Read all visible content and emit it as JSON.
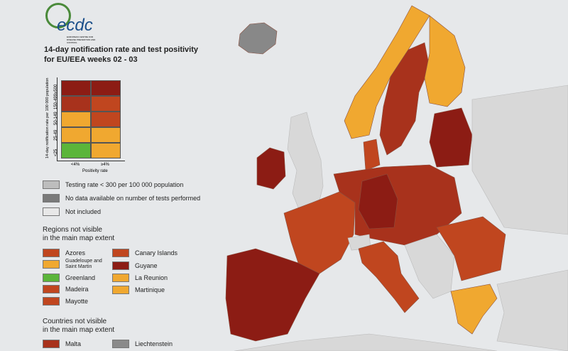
{
  "logo": {
    "name": "ecdc",
    "subtitle": "EUROPEAN CENTRE FOR DISEASE PREVENTION AND CONTROL"
  },
  "title": [
    "14-day notification rate and test positivity",
    "for EU/EEA weeks 02 - 03"
  ],
  "matrix": {
    "y_label": "14-day notification rate per 100 000 population",
    "rows": [
      "≥500",
      "150-499",
      "50-149",
      "25-49",
      "<25"
    ],
    "columns": [
      "<4%",
      "≥4%"
    ],
    "x_label": "Positivity rate",
    "colors": [
      [
        "#8c1c14",
        "#8c1c14"
      ],
      [
        "#a8321c",
        "#c0461f"
      ],
      [
        "#f0a830",
        "#c0461f"
      ],
      [
        "#f0a830",
        "#f0a830"
      ],
      [
        "#5bb53a",
        "#f0a830"
      ]
    ]
  },
  "legend": [
    {
      "label": "Testing rate < 300 per 100 000 population",
      "color": "#bdbdbd"
    },
    {
      "label": "No data available on number of tests performed",
      "color": "#7a7a7a"
    },
    {
      "label": "Not included",
      "color": "#e8e8e8"
    }
  ],
  "regions": {
    "title": [
      "Regions not visible",
      "in the main map extent"
    ],
    "items": [
      {
        "label": "Azores",
        "color": "#c0461f"
      },
      {
        "label": "Guadeloupe and Saint Martin",
        "color": "#f0a830"
      },
      {
        "label": "Greenland",
        "color": "#5bb53a"
      },
      {
        "label": "Madeira",
        "color": "#c0461f"
      },
      {
        "label": "Mayotte",
        "color": "#c0461f"
      },
      {
        "label": "Canary Islands",
        "color": "#c0461f"
      },
      {
        "label": "Guyane",
        "color": "#8c1c14"
      },
      {
        "label": "La Reunion",
        "color": "#f0a830"
      },
      {
        "label": "Martinique",
        "color": "#f0a830"
      }
    ]
  },
  "countries": {
    "title": [
      "Countries not visible",
      "in the main map extent"
    ],
    "items": [
      {
        "label": "Malta",
        "color": "#a8321c"
      },
      {
        "label": "Liechtenstein",
        "color": "#8a8a8a"
      }
    ]
  }
}
